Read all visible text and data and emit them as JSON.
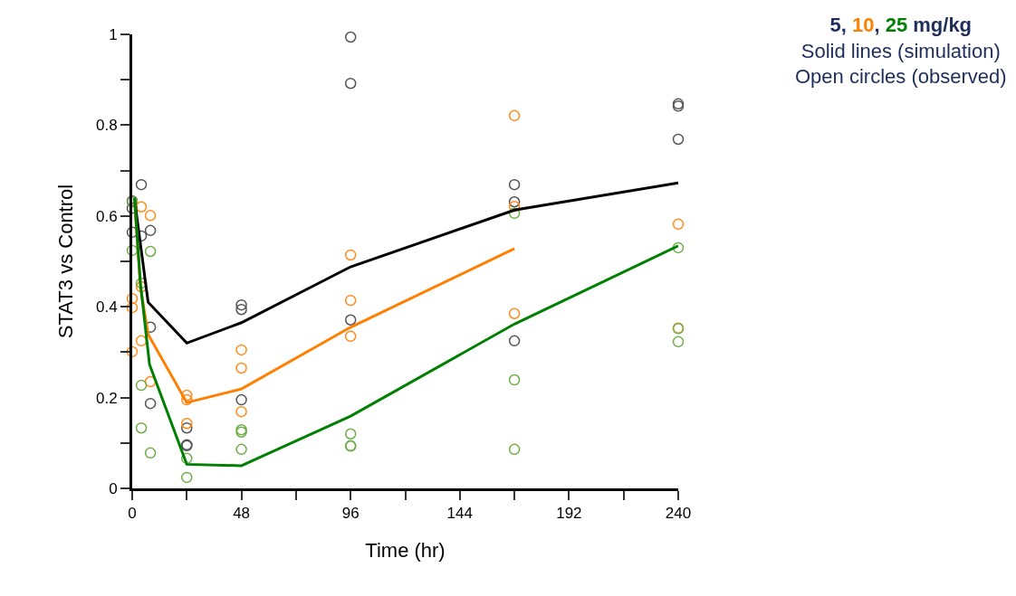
{
  "chart_data": {
    "type": "line",
    "xlabel": "Time (hr)",
    "ylabel": "STAT3 vs Control",
    "annotations": [
      "5, 10, 25 mg/kg",
      "Solid lines (simulation)",
      "Open circles (observed)"
    ],
    "xlim": [
      0,
      240
    ],
    "xticks": [
      0,
      {
        "value": 24,
        "label": null
      },
      48,
      {
        "value": 72,
        "label": null
      },
      96,
      {
        "value": 120,
        "label": null
      },
      144,
      {
        "value": 168,
        "label": null
      },
      192,
      {
        "value": 216,
        "label": null
      },
      240
    ],
    "ylim": [
      0,
      1
    ],
    "yticks": [
      0,
      {
        "value": 0.1,
        "label": null
      },
      0.2,
      {
        "value": 0.3,
        "label": null
      },
      0.4,
      {
        "value": 0.5,
        "label": null
      },
      0.6,
      {
        "value": 0.7,
        "label": null
      },
      0.8,
      {
        "value": 0.9,
        "label": null
      },
      1
    ],
    "series": [
      {
        "type": "scatter",
        "marker": "circle",
        "color": "#555555",
        "x": [
          0,
          0,
          0,
          4,
          4,
          8,
          8,
          8,
          24,
          24,
          24,
          48,
          48,
          48,
          96,
          96,
          96,
          168,
          168,
          168,
          240,
          240,
          240
        ],
        "values": [
          0.633,
          0.617,
          0.564,
          0.669,
          0.556,
          0.568,
          0.355,
          0.187,
          0.133,
          0.094,
          0.096,
          0.404,
          0.394,
          0.195,
          0.994,
          0.892,
          0.371,
          0.669,
          0.631,
          0.325,
          0.847,
          0.842,
          0.769
        ]
      },
      {
        "type": "scatter",
        "marker": "circle",
        "color": "#ff8c1a",
        "x": [
          0,
          0,
          0,
          4,
          4,
          4,
          8,
          8,
          24,
          24,
          24,
          48,
          48,
          48,
          96,
          96,
          96,
          168,
          168,
          168,
          240,
          240
        ],
        "values": [
          0.418,
          0.398,
          0.301,
          0.62,
          0.444,
          0.325,
          0.601,
          0.235,
          0.205,
          0.195,
          0.143,
          0.305,
          0.265,
          0.169,
          0.514,
          0.414,
          0.335,
          0.821,
          0.621,
          0.385,
          0.582,
          0.353
        ]
      },
      {
        "type": "scatter",
        "marker": "circle",
        "color": "#70ad47",
        "x": [
          0,
          0,
          4,
          4,
          4,
          8,
          8,
          24,
          24,
          48,
          48,
          48,
          96,
          96,
          96,
          168,
          168,
          168,
          240,
          240,
          240
        ],
        "values": [
          0.631,
          0.524,
          0.452,
          0.227,
          0.133,
          0.522,
          0.078,
          0.066,
          0.024,
          0.129,
          0.124,
          0.086,
          0.12,
          0.094,
          0.093,
          0.606,
          0.239,
          0.086,
          0.53,
          0.352,
          0.323
        ]
      },
      {
        "marker": "none",
        "line_style": "solid",
        "color": "#000000",
        "x": [
          1,
          7,
          24,
          48,
          96,
          168,
          240
        ],
        "values": [
          0.637,
          0.41,
          0.32,
          0.365,
          0.488,
          0.613,
          0.673
        ]
      },
      {
        "marker": "none",
        "line_style": "solid",
        "color": "#ff7f00",
        "x": [
          1,
          3.6,
          7,
          24,
          48,
          96,
          168
        ],
        "values": [
          0.637,
          0.444,
          0.339,
          0.189,
          0.219,
          0.355,
          0.528
        ]
      },
      {
        "marker": "none",
        "line_style": "solid",
        "color": "#008000",
        "x": [
          1,
          3.6,
          7.6,
          24,
          48,
          96,
          168,
          240
        ],
        "values": [
          0.64,
          0.452,
          0.273,
          0.053,
          0.05,
          0.159,
          0.362,
          0.534
        ]
      }
    ]
  }
}
